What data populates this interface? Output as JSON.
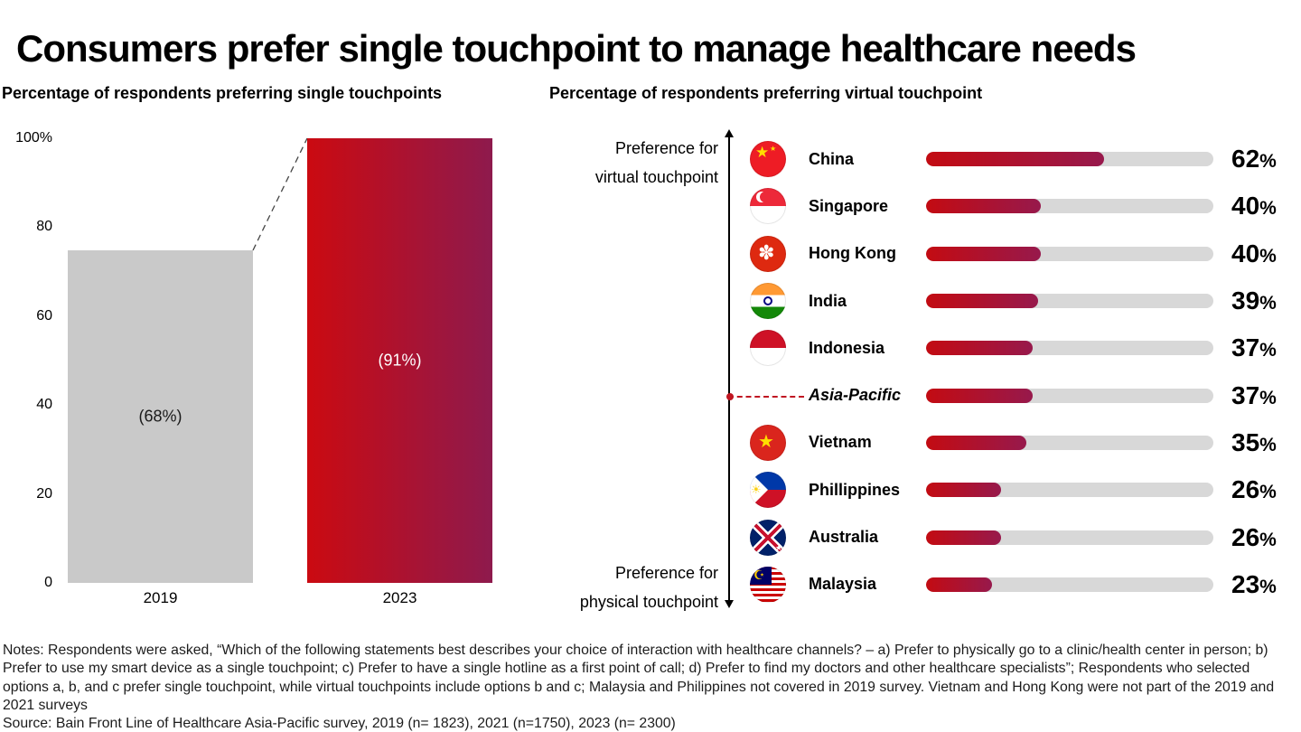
{
  "title": "Consumers prefer single touchpoint to manage healthcare needs",
  "left_chart": {
    "subtitle": "Percentage of respondents preferring single touchpoints",
    "yticks": [
      "100%",
      "80",
      "60",
      "40",
      "20",
      "0"
    ],
    "bars": [
      {
        "year": "2019",
        "label": "(68%)",
        "value": 68,
        "display_height": 74.8
      },
      {
        "year": "2023",
        "label": "(91%)",
        "value": 91,
        "display_height": 100
      }
    ]
  },
  "right_chart": {
    "subtitle": "Percentage of respondents preferring virtual touchpoint",
    "axis_top": [
      "Preference for",
      "virtual touchpoint"
    ],
    "axis_bottom": [
      "Preference for",
      "physical touchpoint"
    ],
    "unit": "%",
    "rows": [
      {
        "name": "China",
        "flag": "china",
        "value": 62
      },
      {
        "name": "Singapore",
        "flag": "singapore",
        "value": 40
      },
      {
        "name": "Hong Kong",
        "flag": "hongkong",
        "value": 40
      },
      {
        "name": "India",
        "flag": "india",
        "value": 39
      },
      {
        "name": "Indonesia",
        "flag": "indonesia",
        "value": 37
      },
      {
        "name": "Asia-Pacific",
        "flag": null,
        "value": 37,
        "italic": true,
        "marker": true
      },
      {
        "name": "Vietnam",
        "flag": "vietnam",
        "value": 35
      },
      {
        "name": "Phillippines",
        "flag": "philippines",
        "value": 26
      },
      {
        "name": "Australia",
        "flag": "australia",
        "value": 26
      },
      {
        "name": "Malaysia",
        "flag": "malaysia",
        "value": 23
      }
    ]
  },
  "notes": "Notes: Respondents were asked, “Which of the following statements best describes your choice of interaction with healthcare channels? – a) Prefer to physically go to a clinic/health center in person; b) Prefer to use my smart device as a single touchpoint; c) Prefer to have a single hotline as a first point of call; d) Prefer to find my doctors and other healthcare specialists”; Respondents who selected options a, b, and c prefer single touchpoint, while virtual touchpoints include options b and c; Malaysia and Philippines not covered in 2019 survey. Vietnam and Hong Kong were not part of the 2019 and 2021 surveys",
  "source": "Source: Bain Front Line of Healthcare Asia-Pacific survey, 2019 (n= 1823), 2021 (n=1750), 2023 (n= 2300)",
  "colors": {
    "bar_gray": "#c9c9c9",
    "track_gray": "#d8d8d8",
    "red_gradient_start": "#c30b12",
    "red_gradient_end": "#97194c",
    "marker_red": "#c01622"
  },
  "chart_data": [
    {
      "type": "bar",
      "title": "Percentage of respondents preferring single touchpoints",
      "categories": [
        "2019",
        "2023"
      ],
      "values": [
        68,
        91
      ],
      "data_labels": [
        "(68%)",
        "(91%)"
      ],
      "ylim": [
        0,
        100
      ],
      "yticks": [
        0,
        20,
        40,
        60,
        80,
        100
      ],
      "grid": false,
      "bar_colors": [
        "gray",
        "red-gradient"
      ],
      "annotation": "dashed connector line between bar tops; 2019 bar drawn to ~75% height, 2023 bar drawn to 100% height"
    },
    {
      "type": "bar",
      "orientation": "horizontal",
      "title": "Percentage of respondents preferring virtual touchpoint",
      "categories": [
        "China",
        "Singapore",
        "Hong Kong",
        "India",
        "Indonesia",
        "Asia-Pacific",
        "Vietnam",
        "Phillippines",
        "Australia",
        "Malaysia"
      ],
      "values": [
        62,
        40,
        40,
        39,
        37,
        37,
        35,
        26,
        26,
        23
      ],
      "xlim": [
        0,
        100
      ],
      "legend_position": "none",
      "axis_annotations": {
        "top": "Preference for virtual touchpoint",
        "bottom": "Preference for physical touchpoint"
      },
      "highlighted_category": "Asia-Pacific"
    }
  ]
}
